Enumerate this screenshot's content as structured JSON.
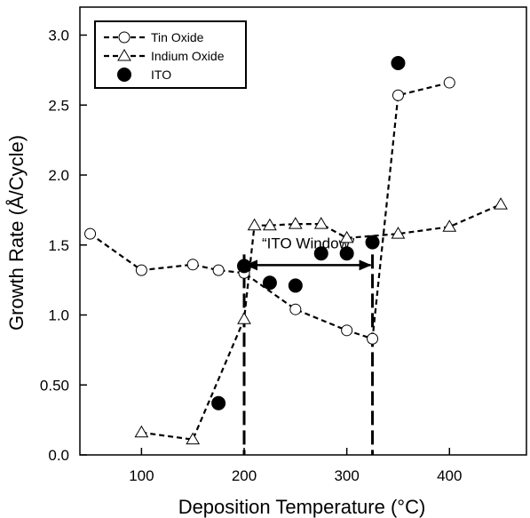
{
  "chart_data": {
    "type": "scatter",
    "title": "",
    "xlabel": "Deposition Temperature (°C)",
    "ylabel": "Growth Rate (Å/Cycle)",
    "xlim": [
      40,
      475
    ],
    "ylim": [
      0.0,
      3.2
    ],
    "xticks": [
      100,
      200,
      300,
      400
    ],
    "xtick_labels": [
      "100",
      "200",
      "300",
      "400"
    ],
    "yticks": [
      0.0,
      0.5,
      1.0,
      1.5,
      2.0,
      2.5,
      3.0
    ],
    "ytick_labels": [
      "0.0",
      "0.50",
      "1.0",
      "1.5",
      "2.0",
      "2.5",
      "3.0"
    ],
    "grid": false,
    "legend_position": "top-left",
    "series": [
      {
        "name": "Tin Oxide",
        "marker": "open-circle",
        "line": "dashed",
        "x": [
          50,
          100,
          150,
          175,
          200,
          250,
          300,
          325,
          350,
          400
        ],
        "y": [
          1.58,
          1.32,
          1.36,
          1.32,
          1.3,
          1.04,
          0.89,
          0.83,
          2.57,
          2.66
        ]
      },
      {
        "name": "Indium Oxide",
        "marker": "open-triangle",
        "line": "dashed",
        "x": [
          100,
          150,
          200,
          210,
          225,
          250,
          275,
          300,
          350,
          400,
          450
        ],
        "y": [
          0.16,
          0.11,
          0.97,
          1.64,
          1.64,
          1.65,
          1.65,
          1.55,
          1.58,
          1.63,
          1.79
        ]
      },
      {
        "name": "ITO",
        "marker": "filled-circle",
        "line": "none",
        "x": [
          175,
          200,
          225,
          250,
          275,
          300,
          325,
          350
        ],
        "y": [
          0.37,
          1.35,
          1.23,
          1.21,
          1.44,
          1.44,
          1.52,
          2.8
        ]
      }
    ],
    "annotations": [
      {
        "text": "“ITO Window”",
        "x_start": 200,
        "x_end": 325,
        "y": 1.42
      }
    ]
  }
}
